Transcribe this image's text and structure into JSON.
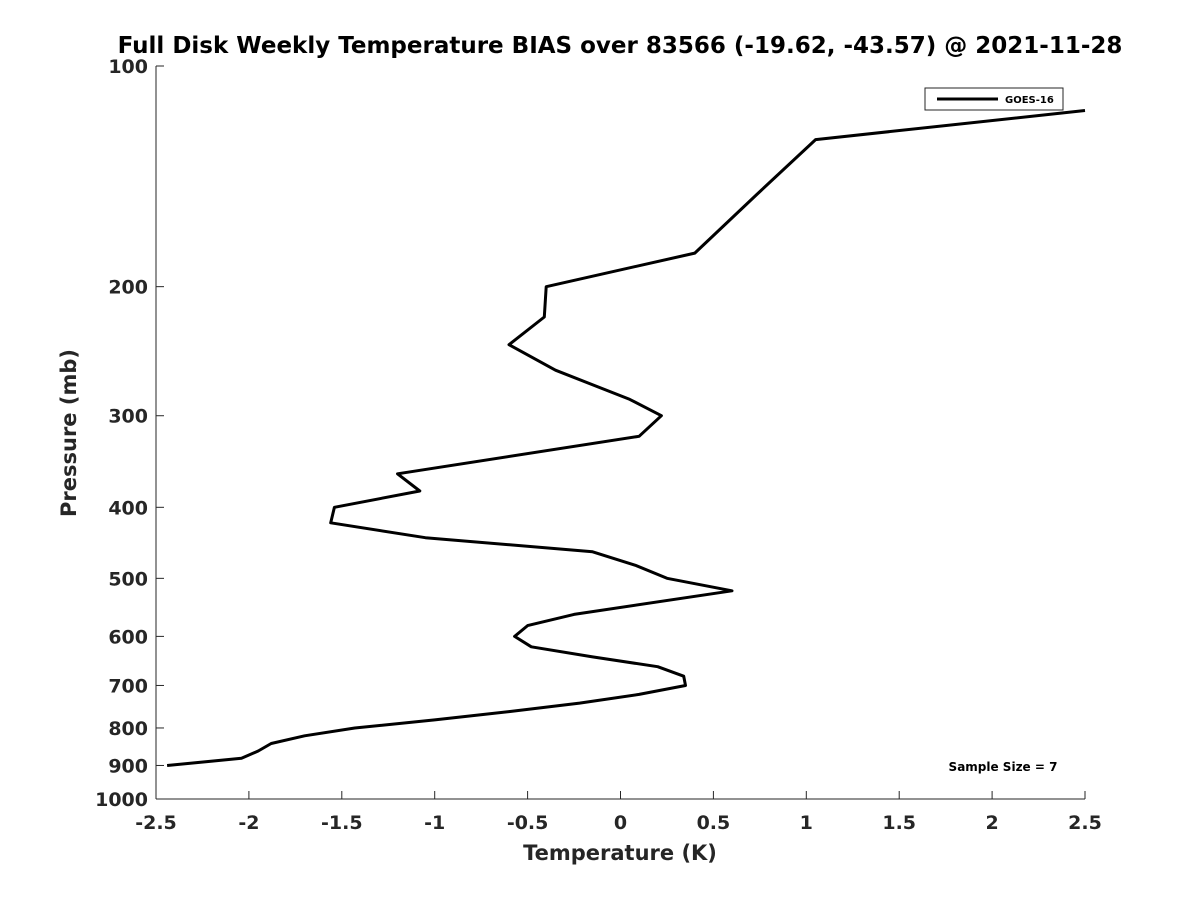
{
  "chart_data": {
    "type": "line",
    "title": "Full Disk Weekly Temperature BIAS over 83566 (-19.62, -43.57) @ 2021-11-28",
    "xlabel": "Temperature (K)",
    "ylabel": "Pressure (mb)",
    "xlim": [
      -2.5,
      2.5
    ],
    "ylim": [
      100,
      1000
    ],
    "y_scale": "log",
    "y_reversed": true,
    "grid": false,
    "legend_position": "top-right",
    "x_ticks": [
      "-2.5",
      "-2",
      "-1.5",
      "-1",
      "-0.5",
      "0",
      "0.5",
      "1",
      "1.5",
      "2",
      "2.5"
    ],
    "y_ticks": [
      "100",
      "200",
      "300",
      "400",
      "500",
      "600",
      "700",
      "800",
      "900",
      "1000"
    ],
    "annotation": "Sample Size = 7",
    "series": [
      {
        "name": "GOES-16",
        "color": "#000000",
        "points": [
          {
            "x": 2.5,
            "y": 115
          },
          {
            "x": 1.05,
            "y": 126
          },
          {
            "x": 0.73,
            "y": 150
          },
          {
            "x": 0.4,
            "y": 180
          },
          {
            "x": -0.4,
            "y": 200
          },
          {
            "x": -0.41,
            "y": 220
          },
          {
            "x": -0.6,
            "y": 240
          },
          {
            "x": -0.35,
            "y": 260
          },
          {
            "x": 0.05,
            "y": 285
          },
          {
            "x": 0.22,
            "y": 300
          },
          {
            "x": 0.1,
            "y": 320
          },
          {
            "x": -1.2,
            "y": 360
          },
          {
            "x": -1.08,
            "y": 380
          },
          {
            "x": -1.54,
            "y": 400
          },
          {
            "x": -1.56,
            "y": 420
          },
          {
            "x": -1.05,
            "y": 440
          },
          {
            "x": -0.15,
            "y": 460
          },
          {
            "x": 0.08,
            "y": 480
          },
          {
            "x": 0.25,
            "y": 500
          },
          {
            "x": 0.6,
            "y": 520
          },
          {
            "x": -0.25,
            "y": 560
          },
          {
            "x": -0.5,
            "y": 580
          },
          {
            "x": -0.57,
            "y": 600
          },
          {
            "x": -0.48,
            "y": 620
          },
          {
            "x": -0.15,
            "y": 640
          },
          {
            "x": 0.2,
            "y": 660
          },
          {
            "x": 0.34,
            "y": 680
          },
          {
            "x": 0.35,
            "y": 700
          },
          {
            "x": 0.1,
            "y": 720
          },
          {
            "x": -0.22,
            "y": 740
          },
          {
            "x": -0.6,
            "y": 760
          },
          {
            "x": -1.0,
            "y": 780
          },
          {
            "x": -1.43,
            "y": 800
          },
          {
            "x": -1.7,
            "y": 820
          },
          {
            "x": -1.88,
            "y": 840
          },
          {
            "x": -1.95,
            "y": 860
          },
          {
            "x": -2.04,
            "y": 880
          },
          {
            "x": -2.44,
            "y": 900
          }
        ]
      }
    ]
  }
}
